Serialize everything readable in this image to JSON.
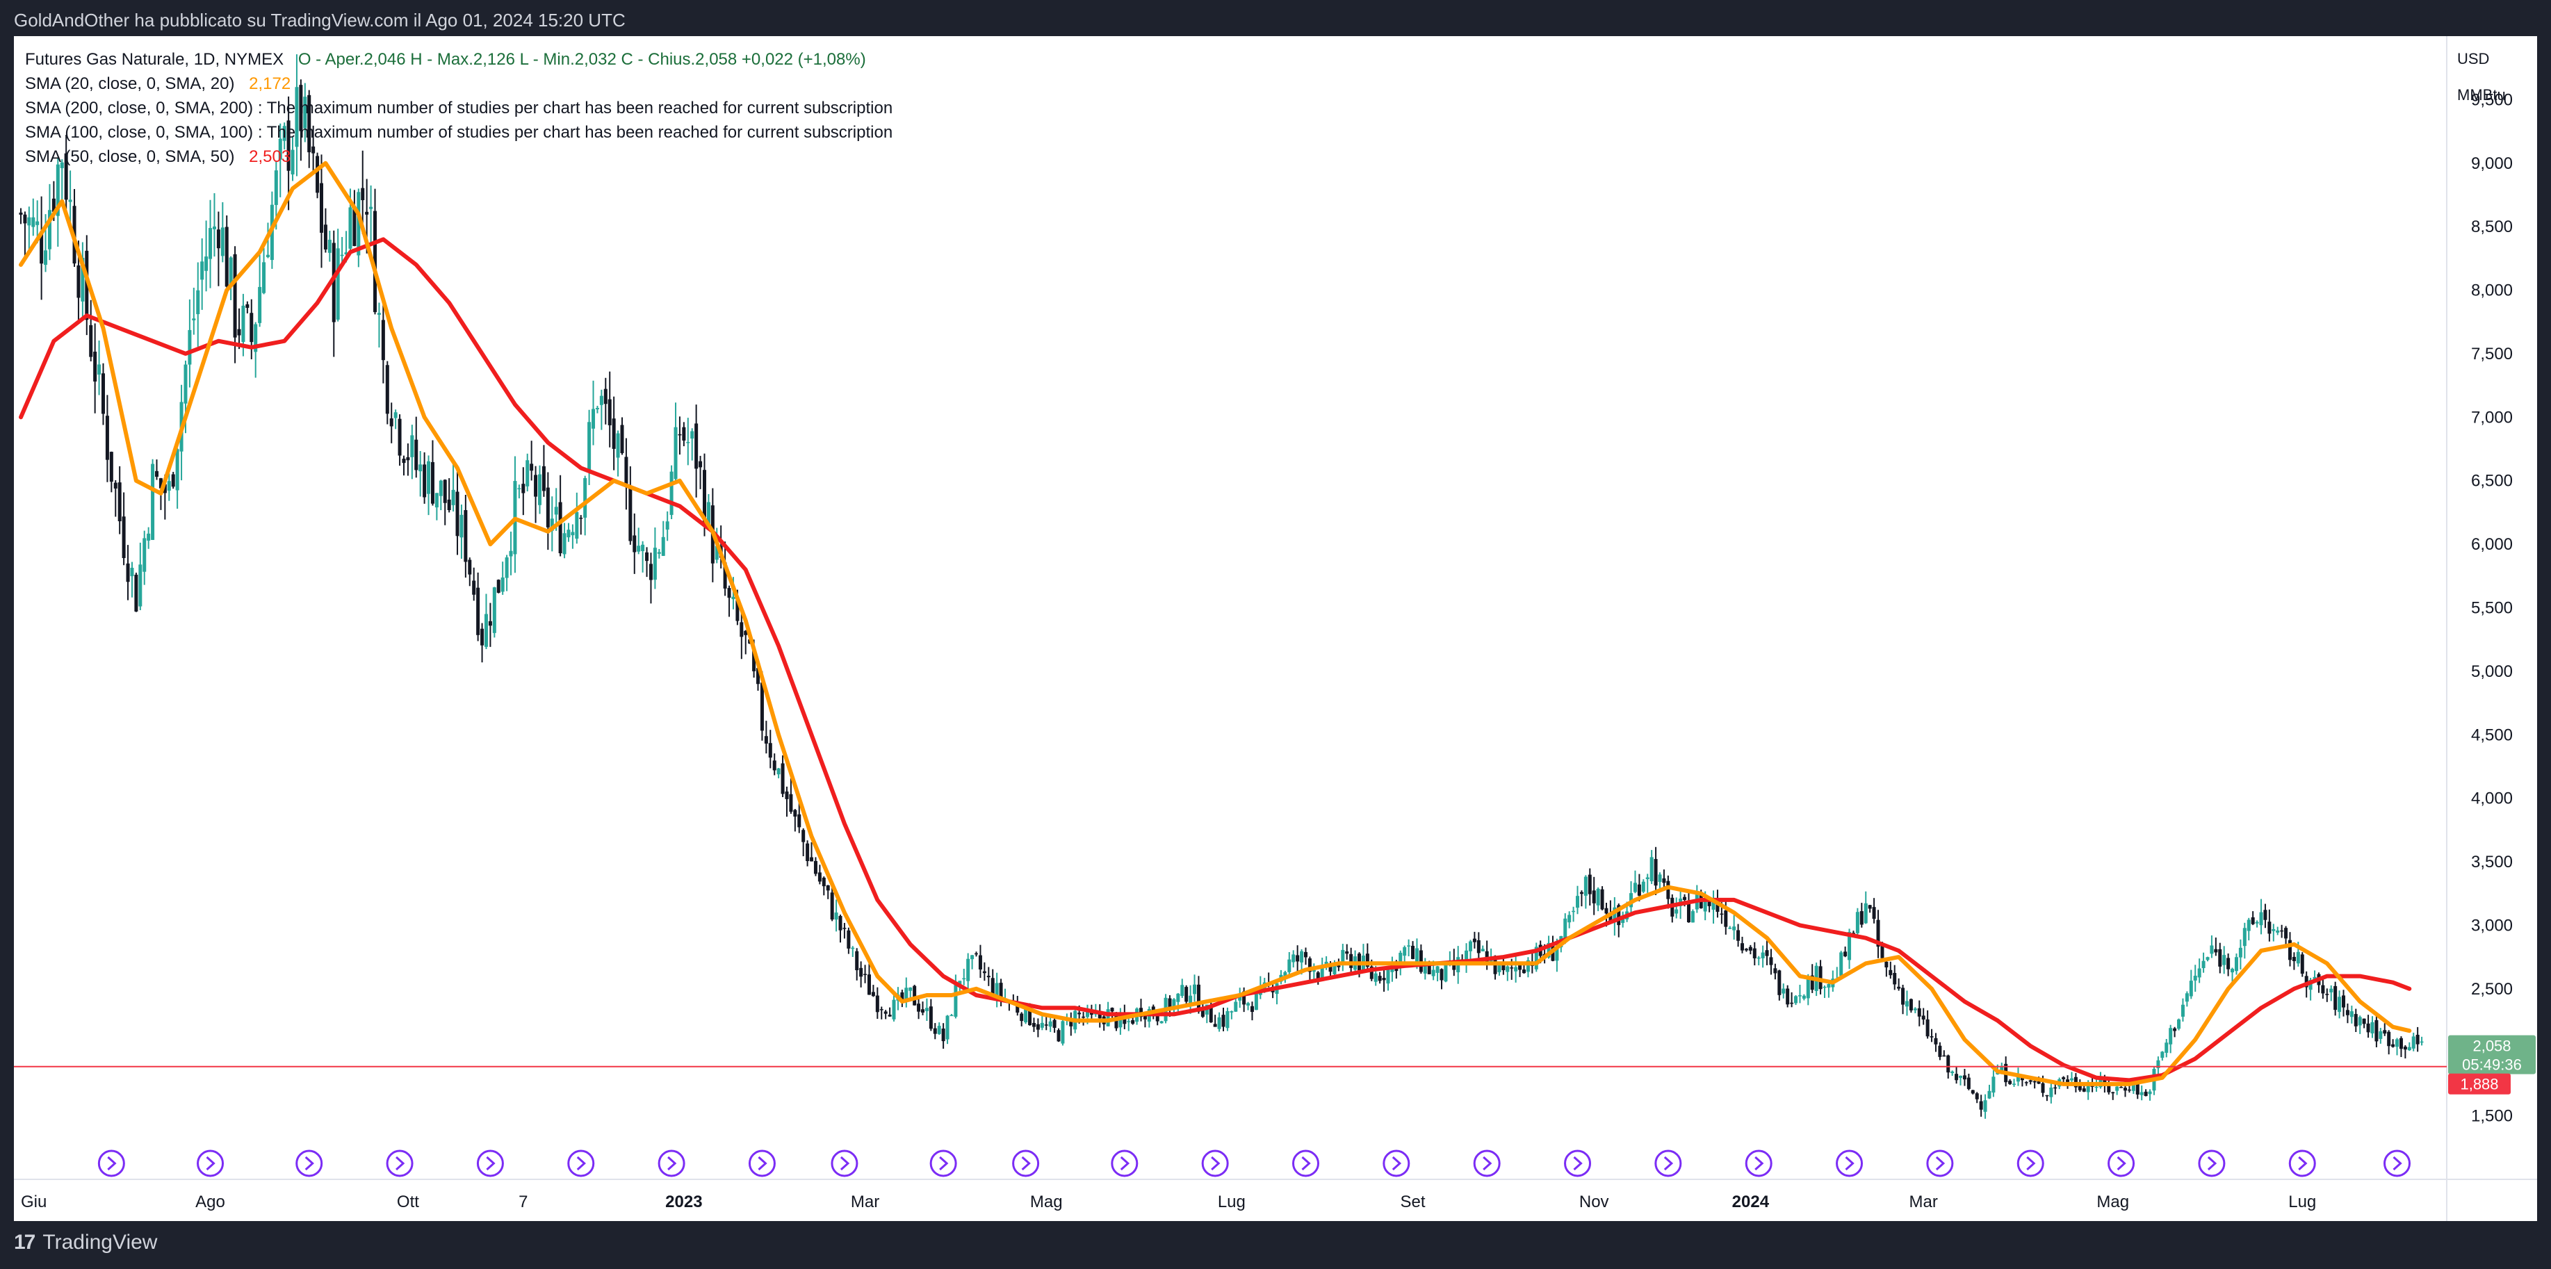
{
  "header": {
    "published": "GoldAndOther ha pubblicato su TradingView.com il Ago 01, 2024 15:20 UTC"
  },
  "legend": {
    "main": {
      "symbol": "Futures Gas Naturale, 1D, NYMEX",
      "ohlc": "O - Aper.2,046  H - Max.2,126  L - Min.2,032  C - Chius.2,058  +0,022 (+1,08%)"
    },
    "sma20": {
      "label": "SMA (20, close, 0, SMA, 20)",
      "value": "2,172",
      "color": "#ff9800"
    },
    "sma200": {
      "label": "SMA (200, close, 0, SMA, 200)",
      "note": "The maximum number of studies per chart has been reached for current subscription"
    },
    "sma100": {
      "label": "SMA (100, close, 0, SMA, 100)",
      "note": "The maximum number of studies per chart has been reached for current subscription"
    },
    "sma50": {
      "label": "SMA (50, close, 0, SMA, 50)",
      "value": "2,503",
      "color": "#f01e1e"
    }
  },
  "price_axis": {
    "currency": "USD",
    "unit": "MMBtu",
    "last_price": "2,058",
    "countdown": "05:49:36",
    "line_price": "1,888"
  },
  "footer": {
    "brand": "TradingView"
  },
  "colors": {
    "up": "#26a69a",
    "down": "#131722",
    "sma20": "#ff9800",
    "sma50": "#f01e1e",
    "hline": "#f23645",
    "last_badge": "#6fb389",
    "event_icon": "#7b2cf5"
  },
  "event_icon": "dividend-arrow-icon",
  "chart_data": {
    "type": "candlestick",
    "symbol": "Futures Gas Naturale, 1D, NYMEX",
    "x_labels": [
      "Giu",
      "Ago",
      "Ott",
      "7",
      "2023",
      "Mar",
      "Mag",
      "Lug",
      "Set",
      "Nov",
      "2024",
      "Mar",
      "Mag",
      "Lug"
    ],
    "y_ticks": [
      1.5,
      2,
      2.5,
      3,
      3.5,
      4,
      4.5,
      5,
      5.5,
      6,
      6.5,
      7,
      7.5,
      8,
      8.5,
      9,
      9.5
    ],
    "y_tick_labels": [
      "1,500",
      "2,000",
      "2,500",
      "3,000",
      "3,500",
      "4,000",
      "4,500",
      "5,000",
      "5,500",
      "6,000",
      "6,500",
      "7,000",
      "7,500",
      "8,000",
      "8,500",
      "9,000",
      "9,500"
    ],
    "ylim": [
      1.0,
      10.0
    ],
    "close_path": [
      [
        0,
        8.6
      ],
      [
        5,
        8.4
      ],
      [
        10,
        9.1
      ],
      [
        14,
        8.2
      ],
      [
        20,
        7.0
      ],
      [
        24,
        6.2
      ],
      [
        28,
        5.6
      ],
      [
        32,
        6.5
      ],
      [
        36,
        6.4
      ],
      [
        40,
        7.4
      ],
      [
        44,
        8.2
      ],
      [
        48,
        8.6
      ],
      [
        52,
        7.8
      ],
      [
        56,
        7.6
      ],
      [
        60,
        8.5
      ],
      [
        64,
        9.1
      ],
      [
        68,
        9.4
      ],
      [
        72,
        8.7
      ],
      [
        76,
        8.0
      ],
      [
        80,
        8.6
      ],
      [
        84,
        8.8
      ],
      [
        88,
        7.4
      ],
      [
        92,
        6.9
      ],
      [
        96,
        6.6
      ],
      [
        100,
        6.5
      ],
      [
        104,
        6.3
      ],
      [
        108,
        6.0
      ],
      [
        112,
        5.3
      ],
      [
        116,
        5.7
      ],
      [
        120,
        6.3
      ],
      [
        124,
        6.5
      ],
      [
        128,
        6.2
      ],
      [
        132,
        6.1
      ],
      [
        136,
        6.4
      ],
      [
        140,
        7.2
      ],
      [
        144,
        6.8
      ],
      [
        148,
        6.2
      ],
      [
        152,
        5.8
      ],
      [
        156,
        6.1
      ],
      [
        160,
        6.9
      ],
      [
        164,
        6.7
      ],
      [
        168,
        6.0
      ],
      [
        172,
        5.5
      ],
      [
        176,
        5.2
      ],
      [
        180,
        4.6
      ],
      [
        184,
        4.2
      ],
      [
        188,
        3.8
      ],
      [
        192,
        3.5
      ],
      [
        196,
        3.2
      ],
      [
        200,
        2.9
      ],
      [
        204,
        2.6
      ],
      [
        208,
        2.4
      ],
      [
        212,
        2.35
      ],
      [
        216,
        2.45
      ],
      [
        220,
        2.3
      ],
      [
        224,
        2.1
      ],
      [
        228,
        2.6
      ],
      [
        232,
        2.7
      ],
      [
        236,
        2.5
      ],
      [
        240,
        2.4
      ],
      [
        244,
        2.3
      ],
      [
        248,
        2.2
      ],
      [
        252,
        2.15
      ],
      [
        256,
        2.3
      ],
      [
        260,
        2.25
      ],
      [
        264,
        2.3
      ],
      [
        268,
        2.2
      ],
      [
        272,
        2.35
      ],
      [
        276,
        2.3
      ],
      [
        280,
        2.4
      ],
      [
        284,
        2.5
      ],
      [
        288,
        2.3
      ],
      [
        292,
        2.25
      ],
      [
        296,
        2.4
      ],
      [
        300,
        2.4
      ],
      [
        304,
        2.55
      ],
      [
        308,
        2.7
      ],
      [
        312,
        2.75
      ],
      [
        316,
        2.6
      ],
      [
        320,
        2.7
      ],
      [
        324,
        2.75
      ],
      [
        328,
        2.6
      ],
      [
        332,
        2.65
      ],
      [
        336,
        2.8
      ],
      [
        340,
        2.7
      ],
      [
        344,
        2.6
      ],
      [
        348,
        2.65
      ],
      [
        352,
        2.8
      ],
      [
        356,
        2.75
      ],
      [
        360,
        2.6
      ],
      [
        364,
        2.7
      ],
      [
        368,
        2.75
      ],
      [
        372,
        2.8
      ],
      [
        376,
        3.0
      ],
      [
        380,
        3.3
      ],
      [
        384,
        3.2
      ],
      [
        388,
        3.0
      ],
      [
        392,
        3.3
      ],
      [
        396,
        3.5
      ],
      [
        400,
        3.15
      ],
      [
        404,
        3.1
      ],
      [
        408,
        3.2
      ],
      [
        412,
        3.15
      ],
      [
        416,
        3.0
      ],
      [
        420,
        2.8
      ],
      [
        424,
        2.7
      ],
      [
        428,
        2.45
      ],
      [
        432,
        2.5
      ],
      [
        436,
        2.6
      ],
      [
        440,
        2.55
      ],
      [
        444,
        2.85
      ],
      [
        448,
        3.2
      ],
      [
        452,
        2.7
      ],
      [
        456,
        2.5
      ],
      [
        460,
        2.3
      ],
      [
        464,
        2.1
      ],
      [
        468,
        1.85
      ],
      [
        472,
        1.75
      ],
      [
        476,
        1.6
      ],
      [
        480,
        1.85
      ],
      [
        484,
        1.8
      ],
      [
        488,
        1.75
      ],
      [
        492,
        1.7
      ],
      [
        496,
        1.8
      ],
      [
        500,
        1.75
      ],
      [
        504,
        1.75
      ],
      [
        508,
        1.7
      ],
      [
        512,
        1.75
      ],
      [
        516,
        1.65
      ],
      [
        520,
        2.0
      ],
      [
        524,
        2.3
      ],
      [
        528,
        2.6
      ],
      [
        532,
        2.8
      ],
      [
        536,
        2.7
      ],
      [
        540,
        2.9
      ],
      [
        544,
        3.1
      ],
      [
        548,
        2.9
      ],
      [
        552,
        2.75
      ],
      [
        556,
        2.55
      ],
      [
        560,
        2.45
      ],
      [
        564,
        2.35
      ],
      [
        568,
        2.25
      ],
      [
        572,
        2.15
      ],
      [
        576,
        2.1
      ],
      [
        580,
        2.06
      ]
    ],
    "sma20": [
      [
        0,
        8.2
      ],
      [
        10,
        8.7
      ],
      [
        20,
        7.7
      ],
      [
        28,
        6.5
      ],
      [
        34,
        6.4
      ],
      [
        42,
        7.2
      ],
      [
        50,
        8.0
      ],
      [
        58,
        8.3
      ],
      [
        66,
        8.8
      ],
      [
        74,
        9.0
      ],
      [
        82,
        8.6
      ],
      [
        90,
        7.7
      ],
      [
        98,
        7.0
      ],
      [
        106,
        6.6
      ],
      [
        114,
        6.0
      ],
      [
        120,
        6.2
      ],
      [
        128,
        6.1
      ],
      [
        136,
        6.3
      ],
      [
        144,
        6.5
      ],
      [
        152,
        6.4
      ],
      [
        160,
        6.5
      ],
      [
        168,
        6.1
      ],
      [
        176,
        5.4
      ],
      [
        184,
        4.5
      ],
      [
        192,
        3.7
      ],
      [
        200,
        3.1
      ],
      [
        208,
        2.6
      ],
      [
        214,
        2.4
      ],
      [
        220,
        2.45
      ],
      [
        226,
        2.45
      ],
      [
        232,
        2.5
      ],
      [
        240,
        2.4
      ],
      [
        248,
        2.3
      ],
      [
        256,
        2.25
      ],
      [
        264,
        2.25
      ],
      [
        272,
        2.3
      ],
      [
        280,
        2.35
      ],
      [
        288,
        2.4
      ],
      [
        296,
        2.45
      ],
      [
        304,
        2.55
      ],
      [
        312,
        2.65
      ],
      [
        320,
        2.7
      ],
      [
        328,
        2.7
      ],
      [
        336,
        2.7
      ],
      [
        344,
        2.7
      ],
      [
        352,
        2.7
      ],
      [
        360,
        2.7
      ],
      [
        368,
        2.7
      ],
      [
        376,
        2.9
      ],
      [
        384,
        3.05
      ],
      [
        392,
        3.2
      ],
      [
        400,
        3.3
      ],
      [
        408,
        3.25
      ],
      [
        416,
        3.1
      ],
      [
        424,
        2.9
      ],
      [
        432,
        2.6
      ],
      [
        440,
        2.55
      ],
      [
        448,
        2.7
      ],
      [
        456,
        2.75
      ],
      [
        464,
        2.5
      ],
      [
        472,
        2.1
      ],
      [
        480,
        1.85
      ],
      [
        488,
        1.8
      ],
      [
        496,
        1.75
      ],
      [
        504,
        1.75
      ],
      [
        512,
        1.75
      ],
      [
        520,
        1.8
      ],
      [
        528,
        2.1
      ],
      [
        536,
        2.5
      ],
      [
        544,
        2.8
      ],
      [
        552,
        2.85
      ],
      [
        560,
        2.7
      ],
      [
        568,
        2.4
      ],
      [
        576,
        2.2
      ],
      [
        580,
        2.17
      ]
    ],
    "sma50": [
      [
        0,
        7.0
      ],
      [
        8,
        7.6
      ],
      [
        16,
        7.8
      ],
      [
        24,
        7.7
      ],
      [
        32,
        7.6
      ],
      [
        40,
        7.5
      ],
      [
        48,
        7.6
      ],
      [
        56,
        7.55
      ],
      [
        64,
        7.6
      ],
      [
        72,
        7.9
      ],
      [
        80,
        8.3
      ],
      [
        88,
        8.4
      ],
      [
        96,
        8.2
      ],
      [
        104,
        7.9
      ],
      [
        112,
        7.5
      ],
      [
        120,
        7.1
      ],
      [
        128,
        6.8
      ],
      [
        136,
        6.6
      ],
      [
        144,
        6.5
      ],
      [
        152,
        6.4
      ],
      [
        160,
        6.3
      ],
      [
        168,
        6.1
      ],
      [
        176,
        5.8
      ],
      [
        184,
        5.2
      ],
      [
        192,
        4.5
      ],
      [
        200,
        3.8
      ],
      [
        208,
        3.2
      ],
      [
        216,
        2.85
      ],
      [
        224,
        2.6
      ],
      [
        232,
        2.45
      ],
      [
        240,
        2.4
      ],
      [
        248,
        2.35
      ],
      [
        256,
        2.35
      ],
      [
        264,
        2.3
      ],
      [
        272,
        2.3
      ],
      [
        280,
        2.3
      ],
      [
        288,
        2.35
      ],
      [
        296,
        2.45
      ],
      [
        304,
        2.5
      ],
      [
        312,
        2.55
      ],
      [
        320,
        2.6
      ],
      [
        328,
        2.65
      ],
      [
        336,
        2.68
      ],
      [
        344,
        2.7
      ],
      [
        352,
        2.72
      ],
      [
        360,
        2.75
      ],
      [
        368,
        2.8
      ],
      [
        376,
        2.9
      ],
      [
        384,
        3.0
      ],
      [
        392,
        3.1
      ],
      [
        400,
        3.15
      ],
      [
        408,
        3.2
      ],
      [
        416,
        3.2
      ],
      [
        424,
        3.1
      ],
      [
        432,
        3.0
      ],
      [
        440,
        2.95
      ],
      [
        448,
        2.9
      ],
      [
        456,
        2.8
      ],
      [
        464,
        2.6
      ],
      [
        472,
        2.4
      ],
      [
        480,
        2.25
      ],
      [
        488,
        2.05
      ],
      [
        496,
        1.9
      ],
      [
        504,
        1.8
      ],
      [
        512,
        1.78
      ],
      [
        520,
        1.82
      ],
      [
        528,
        1.95
      ],
      [
        536,
        2.15
      ],
      [
        544,
        2.35
      ],
      [
        552,
        2.5
      ],
      [
        560,
        2.6
      ],
      [
        568,
        2.6
      ],
      [
        576,
        2.55
      ],
      [
        580,
        2.5
      ]
    ],
    "horizontal_line": 1.888,
    "last_close": 2.058
  }
}
